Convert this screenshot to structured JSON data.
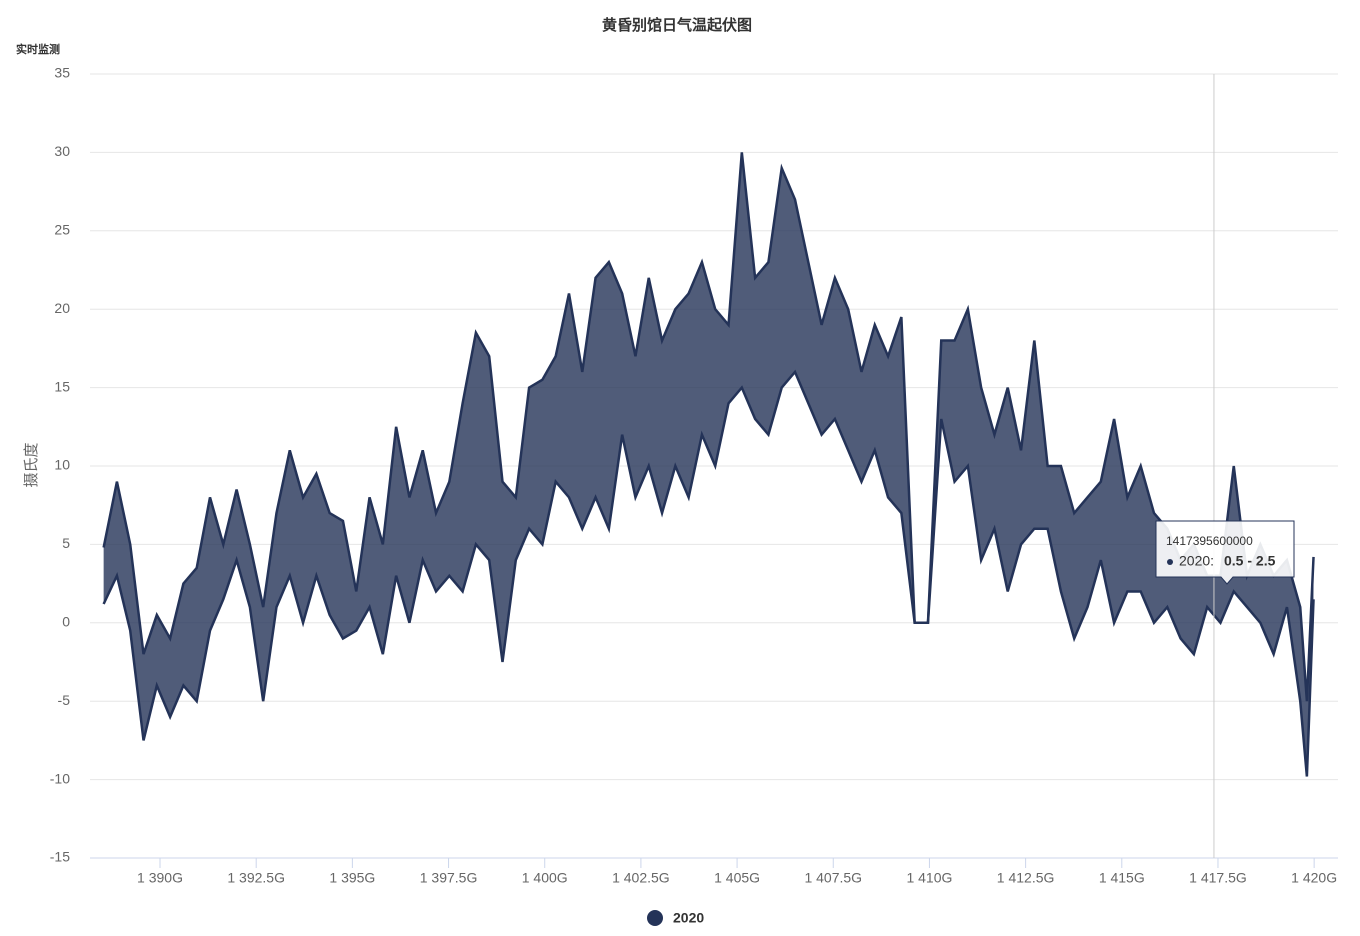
{
  "chart_data": {
    "type": "arearange",
    "title": "黄昏别馆日气温起伏图",
    "subtitle": "实时监测",
    "y_label": "摄氏度",
    "ylim": [
      -15,
      35
    ],
    "yticks": [
      -15,
      -10,
      -5,
      0,
      5,
      10,
      15,
      20,
      25,
      30,
      35
    ],
    "grid": true,
    "xlim": [
      1388180000000,
      1420620000000
    ],
    "xticks": [
      {
        "value": 1390000000000,
        "label": "1 390G"
      },
      {
        "value": 1392500000000,
        "label": "1 392.5G"
      },
      {
        "value": 1395000000000,
        "label": "1 395G"
      },
      {
        "value": 1397500000000,
        "label": "1 397.5G"
      },
      {
        "value": 1400000000000,
        "label": "1 400G"
      },
      {
        "value": 1402500000000,
        "label": "1 402.5G"
      },
      {
        "value": 1405000000000,
        "label": "1 405G"
      },
      {
        "value": 1407500000000,
        "label": "1 407.5G"
      },
      {
        "value": 1410000000000,
        "label": "1 410G"
      },
      {
        "value": 1412500000000,
        "label": "1 412.5G"
      },
      {
        "value": 1415000000000,
        "label": "1 415G"
      },
      {
        "value": 1417500000000,
        "label": "1 417.5G"
      },
      {
        "value": 1420000000000,
        "label": "1 420G"
      }
    ],
    "legend": "bottom",
    "series": [
      {
        "name": "2020",
        "color": "#243358",
        "x": [
          1388534400000,
          1388880000000,
          1389225600000,
          1389571200000,
          1389916800000,
          1390262400000,
          1390608000000,
          1390953600000,
          1391299200000,
          1391644800000,
          1391990400000,
          1392336000000,
          1392681600000,
          1393027200000,
          1393372800000,
          1393718400000,
          1394064000000,
          1394409600000,
          1394755200000,
          1395100800000,
          1395446400000,
          1395792000000,
          1396137600000,
          1396483200000,
          1396828800000,
          1397174400000,
          1397520000000,
          1397865600000,
          1398211200000,
          1398556800000,
          1398902400000,
          1399248000000,
          1399593600000,
          1399939200000,
          1400284800000,
          1400630400000,
          1400976000000,
          1401321600000,
          1401667200000,
          1402012800000,
          1402358400000,
          1402704000000,
          1403049600000,
          1403395200000,
          1403740800000,
          1404086400000,
          1404432000000,
          1404777600000,
          1405123200000,
          1405468800000,
          1405814400000,
          1406160000000,
          1406505600000,
          1406851200000,
          1407196800000,
          1407542400000,
          1407888000000,
          1408233600000,
          1408579200000,
          1408924800000,
          1409270400000,
          1409616000000,
          1409961600000,
          1410307200000,
          1410652800000,
          1410998400000,
          1411344000000,
          1411689600000,
          1412035200000,
          1412380800000,
          1412726400000,
          1413072000000,
          1413417600000,
          1413763200000,
          1414108800000,
          1414454400000,
          1414800000000,
          1415145600000,
          1415491200000,
          1415836800000,
          1416182400000,
          1416528000000,
          1416873600000,
          1417219200000,
          1417564800000,
          1417910400000,
          1418256000000,
          1418601600000,
          1418947200000,
          1419292800000,
          1419638400000,
          1419811200000,
          1419984000000
        ],
        "low": [
          1.2,
          3,
          -0.5,
          -7.5,
          -4,
          -6,
          -4,
          -5,
          -0.5,
          1.5,
          4,
          1,
          -5,
          1,
          3,
          0,
          3,
          0.5,
          -1,
          -0.5,
          1,
          -2,
          3,
          0,
          4,
          2,
          3,
          2,
          5,
          4,
          -2.5,
          4,
          6,
          5,
          9,
          8,
          6,
          8,
          6,
          12,
          8,
          10,
          7,
          10,
          8,
          12,
          10,
          14,
          15,
          13,
          12,
          15,
          16,
          14,
          12,
          13,
          11,
          9,
          11,
          8,
          7,
          0,
          0,
          13,
          9,
          10,
          4,
          6,
          2,
          5,
          6,
          6,
          2,
          -1,
          1,
          4,
          0,
          2,
          2,
          0,
          1,
          -1,
          -2,
          1,
          0,
          2,
          1,
          0,
          -2,
          1,
          -5,
          -9.8,
          1.5
        ],
        "high": [
          4.8,
          9,
          5,
          -2,
          0.5,
          -1,
          2.5,
          3.5,
          8,
          5,
          8.5,
          5,
          1,
          7,
          11,
          8,
          9.5,
          7,
          6.5,
          2,
          8,
          5,
          12.5,
          8,
          11,
          7,
          9,
          14,
          18.5,
          17,
          9,
          8,
          15,
          15.5,
          17,
          21,
          16,
          22,
          23,
          21,
          17,
          22,
          18,
          20,
          21,
          23,
          20,
          19,
          30,
          22,
          23,
          29,
          27,
          23,
          19,
          22,
          20,
          16,
          19,
          17,
          19.5,
          0,
          0,
          18,
          18,
          20,
          15,
          12,
          15,
          11,
          18,
          10,
          10,
          7,
          8,
          9,
          13,
          8,
          10,
          7,
          6,
          4,
          5,
          3,
          3,
          10,
          3,
          5,
          3,
          4,
          1,
          -5,
          4.2
        ]
      }
    ],
    "tooltip": {
      "x": 1417395600000,
      "point_label": "2020:",
      "range_label": "0.5 - 2.5"
    }
  }
}
